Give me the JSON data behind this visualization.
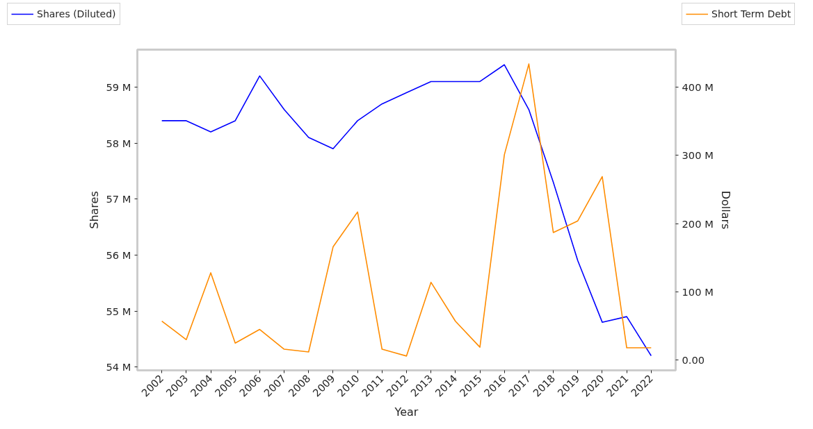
{
  "chart_data": {
    "type": "line",
    "xlabel": "Year",
    "ylabel": "Shares",
    "y2label": "Dollars",
    "categories": [
      "2002",
      "2003",
      "2004",
      "2005",
      "2006",
      "2007",
      "2008",
      "2009",
      "2010",
      "2011",
      "2012",
      "2013",
      "2014",
      "2015",
      "2016",
      "2017",
      "2018",
      "2019",
      "2020",
      "2021",
      "2022"
    ],
    "series": [
      {
        "name": "Shares (Diluted)",
        "color": "#0000ff",
        "values": [
          58.4,
          58.4,
          58.2,
          58.4,
          59.2,
          58.6,
          58.1,
          57.9,
          58.4,
          58.7,
          58.9,
          59.1,
          59.1,
          59.1,
          59.4,
          58.6,
          57.3,
          55.9,
          54.8,
          54.9,
          54.2
        ]
      },
      {
        "name": "Short Term Debt",
        "color": "#ff8c00",
        "axis": "y2",
        "values": [
          57,
          30,
          128,
          25,
          45,
          16,
          12,
          166,
          217,
          16,
          6,
          114,
          57,
          19,
          301,
          434,
          187,
          204,
          269,
          18,
          18
        ]
      }
    ],
    "ylim": [
      53.94,
      59.67
    ],
    "yticks": [
      {
        "value": 54,
        "label": "54 M"
      },
      {
        "value": 55,
        "label": "55 M"
      },
      {
        "value": 56,
        "label": "56 M"
      },
      {
        "value": 57,
        "label": "57 M"
      },
      {
        "value": 58,
        "label": "58 M"
      },
      {
        "value": 59,
        "label": "59 M"
      }
    ],
    "y2lim": [
      -15,
      455
    ],
    "y2ticks": [
      {
        "value": 0,
        "label": "0.00"
      },
      {
        "value": 100,
        "label": "100 M"
      },
      {
        "value": 200,
        "label": "200 M"
      },
      {
        "value": 300,
        "label": "300 M"
      },
      {
        "value": 400,
        "label": "400 M"
      }
    ],
    "legend": "top",
    "grid": false,
    "line_style": "solid"
  }
}
